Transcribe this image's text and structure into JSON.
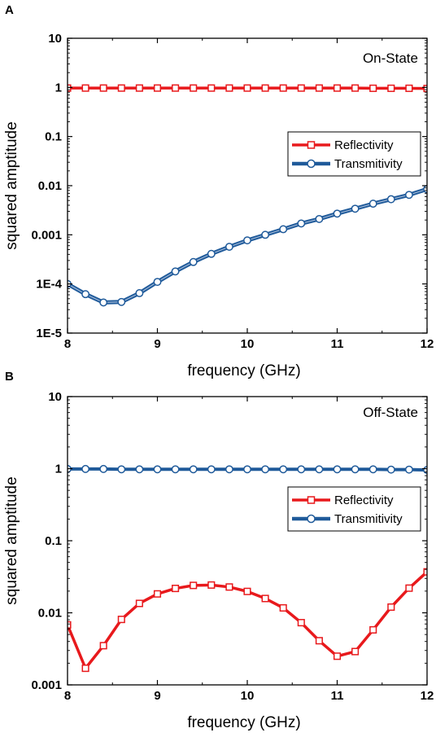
{
  "chart_data": [
    {
      "type": "line",
      "panel_label": "A",
      "annotation": "On-State",
      "xlabel": "frequency (GHz)",
      "ylabel": "squared amptitude",
      "xlim": [
        8,
        12
      ],
      "ylim": [
        1e-05,
        10
      ],
      "yscale": "log",
      "x_ticks": [
        "8",
        "9",
        "10",
        "11",
        "12"
      ],
      "y_ticks": [
        "10",
        "1",
        "0.1",
        "0.01",
        "0.001",
        "1E-4",
        "1E-5"
      ],
      "legend_position": "right-middle",
      "colors": {
        "reflectivity": "#e8191c",
        "transmitivity": "#1f5a9a"
      },
      "series": [
        {
          "name": "Reflectivity",
          "marker": "square",
          "x": [
            8.0,
            8.2,
            8.4,
            8.6,
            8.8,
            9.0,
            9.2,
            9.4,
            9.6,
            9.8,
            10.0,
            10.2,
            10.4,
            10.6,
            10.8,
            11.0,
            11.2,
            11.4,
            11.6,
            11.8,
            12.0
          ],
          "values": [
            0.97,
            0.97,
            0.97,
            0.97,
            0.97,
            0.97,
            0.97,
            0.97,
            0.97,
            0.97,
            0.97,
            0.97,
            0.97,
            0.97,
            0.97,
            0.97,
            0.97,
            0.96,
            0.96,
            0.96,
            0.95
          ]
        },
        {
          "name": "Transmitivity",
          "marker": "circle",
          "x": [
            8.0,
            8.2,
            8.4,
            8.6,
            8.8,
            9.0,
            9.2,
            9.4,
            9.6,
            9.8,
            10.0,
            10.2,
            10.4,
            10.6,
            10.8,
            11.0,
            11.2,
            11.4,
            11.6,
            11.8,
            12.0
          ],
          "values": [
            0.0001,
            6.2e-05,
            4.2e-05,
            4.3e-05,
            6.5e-05,
            0.00011,
            0.00018,
            0.00028,
            0.00041,
            0.00057,
            0.00077,
            0.001,
            0.0013,
            0.0017,
            0.0021,
            0.0027,
            0.0034,
            0.0043,
            0.0053,
            0.0065,
            0.0085
          ]
        }
      ]
    },
    {
      "type": "line",
      "panel_label": "B",
      "annotation": "Off-State",
      "xlabel": "frequency (GHz)",
      "ylabel": "squared amptitude",
      "xlim": [
        8,
        12
      ],
      "ylim": [
        0.001,
        10
      ],
      "yscale": "log",
      "x_ticks": [
        "8",
        "9",
        "10",
        "11",
        "12"
      ],
      "y_ticks": [
        "10",
        "1",
        "0.1",
        "0.01",
        "0.001"
      ],
      "legend_position": "right-middle",
      "colors": {
        "reflectivity": "#e8191c",
        "transmitivity": "#1f5a9a"
      },
      "series": [
        {
          "name": "Reflectivity",
          "marker": "square",
          "x": [
            8.0,
            8.2,
            8.4,
            8.6,
            8.8,
            9.0,
            9.2,
            9.4,
            9.6,
            9.8,
            10.0,
            10.2,
            10.4,
            10.6,
            10.8,
            11.0,
            11.2,
            11.4,
            11.6,
            11.8,
            12.0
          ],
          "values": [
            0.0068,
            0.0017,
            0.0035,
            0.0081,
            0.0135,
            0.0183,
            0.0218,
            0.024,
            0.0243,
            0.0228,
            0.0198,
            0.0158,
            0.0117,
            0.0073,
            0.0041,
            0.0025,
            0.0029,
            0.0058,
            0.012,
            0.022,
            0.037
          ]
        },
        {
          "name": "Transmitivity",
          "marker": "circle",
          "x": [
            8.0,
            8.2,
            8.4,
            8.6,
            8.8,
            9.0,
            9.2,
            9.4,
            9.6,
            9.8,
            10.0,
            10.2,
            10.4,
            10.6,
            10.8,
            11.0,
            11.2,
            11.4,
            11.6,
            11.8,
            12.0
          ],
          "values": [
            0.99,
            0.99,
            0.99,
            0.98,
            0.98,
            0.98,
            0.98,
            0.98,
            0.98,
            0.98,
            0.98,
            0.98,
            0.98,
            0.98,
            0.98,
            0.98,
            0.98,
            0.98,
            0.97,
            0.97,
            0.96
          ]
        }
      ]
    }
  ]
}
